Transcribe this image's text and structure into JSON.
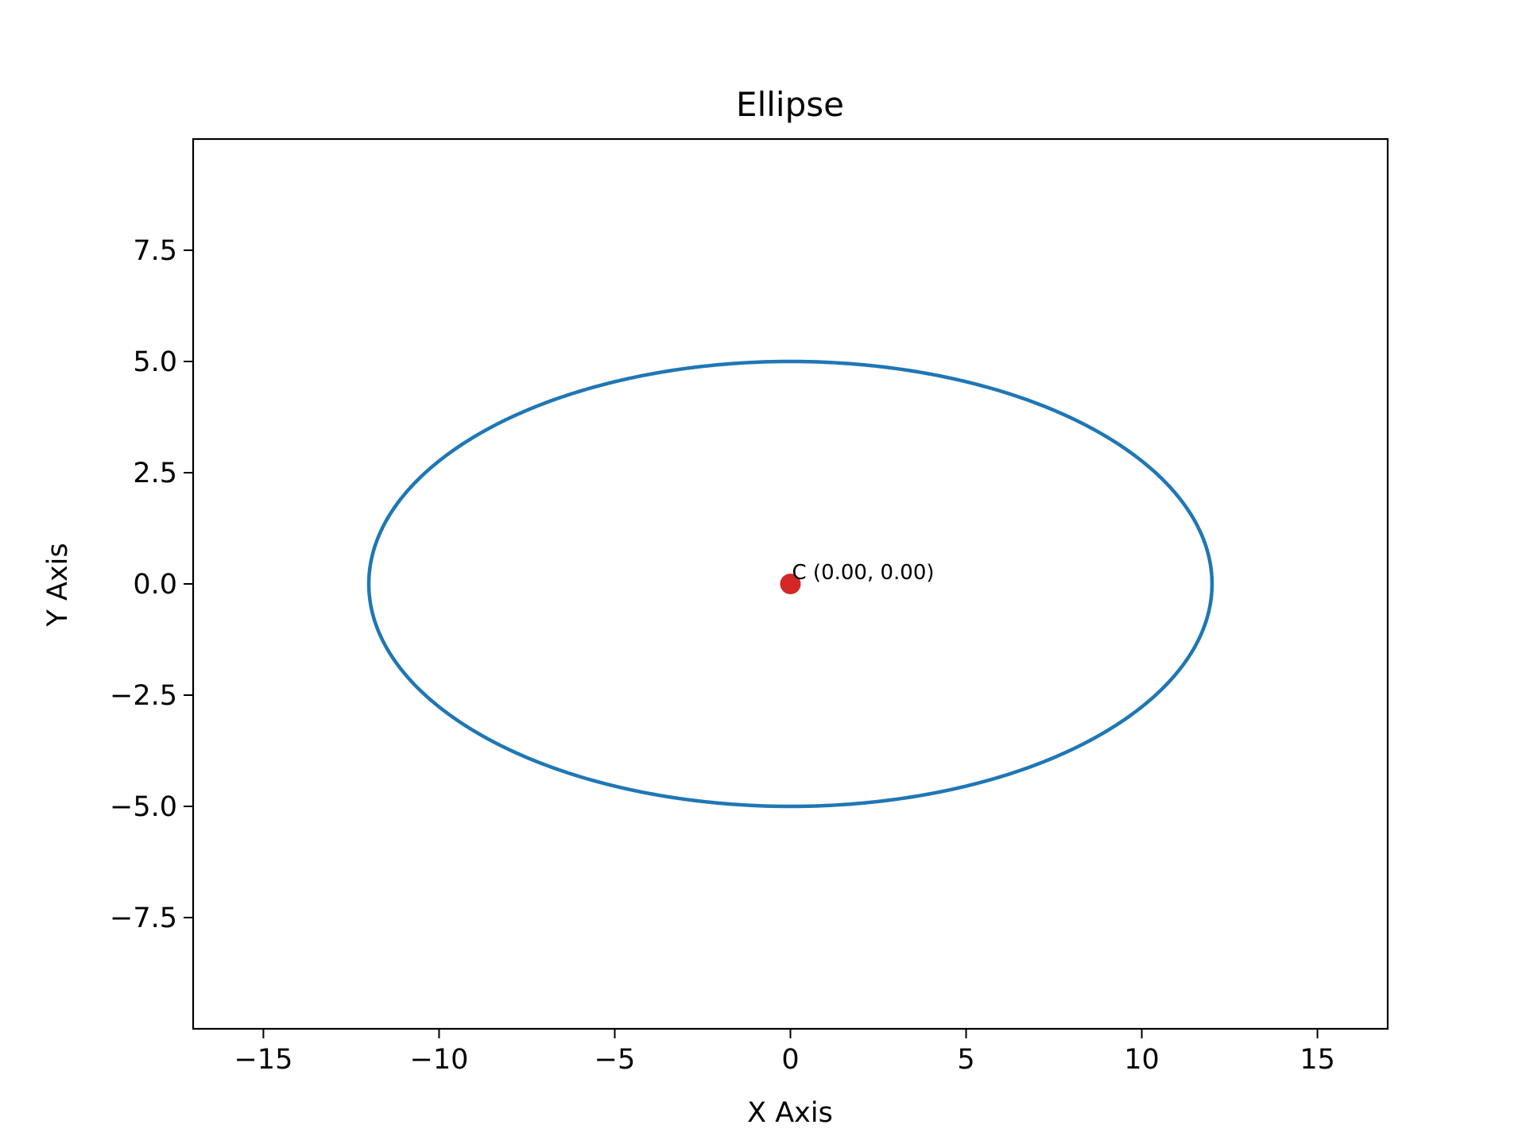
{
  "chart_data": {
    "type": "line",
    "title": "Ellipse",
    "xlabel": "X Axis",
    "ylabel": "Y Axis",
    "xlim": [
      -17,
      17
    ],
    "ylim": [
      -10,
      10
    ],
    "xticks": [
      -15,
      -10,
      -5,
      0,
      5,
      10,
      15
    ],
    "xtick_labels": [
      "−15",
      "−10",
      "−5",
      "0",
      "5",
      "10",
      "15"
    ],
    "yticks": [
      -7.5,
      -5.0,
      -2.5,
      0.0,
      2.5,
      5.0,
      7.5
    ],
    "ytick_labels": [
      "−7.5",
      "−5.0",
      "−2.5",
      "0.0",
      "2.5",
      "5.0",
      "7.5"
    ],
    "grid": false,
    "series": [
      {
        "kind": "ellipse",
        "center": [
          0,
          0
        ],
        "semi_major_x": 12,
        "semi_minor_y": 5,
        "color": "#1f77b4"
      }
    ],
    "points": [
      {
        "x": 0,
        "y": 0,
        "color": "#d62728",
        "label": "C (0.00, 0.00)"
      }
    ]
  }
}
